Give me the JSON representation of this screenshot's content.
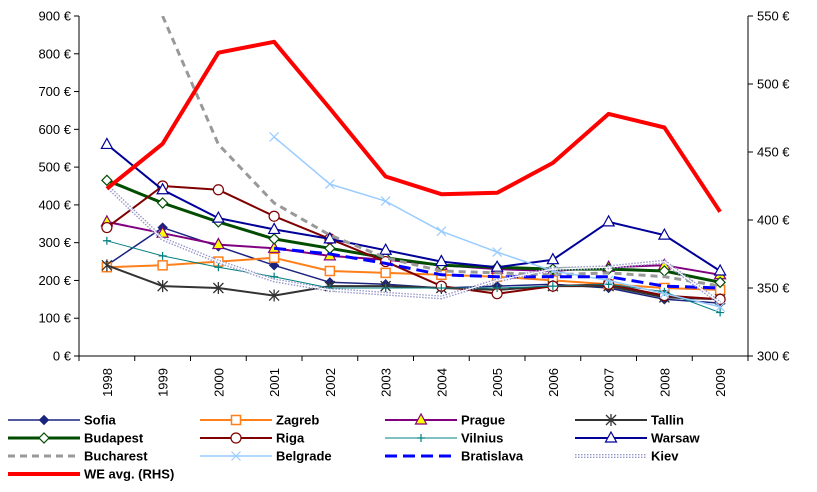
{
  "chart_data": {
    "type": "line",
    "x": [
      "1998",
      "1999",
      "2000",
      "2001",
      "2002",
      "2003",
      "2004",
      "2005",
      "2006",
      "2007",
      "2008",
      "2009"
    ],
    "y_left": {
      "lim": [
        0,
        900
      ],
      "ticks": [
        0,
        100,
        200,
        300,
        400,
        500,
        600,
        700,
        800,
        900
      ],
      "tick_labels": [
        "0 €",
        "100 €",
        "200 €",
        "300 €",
        "400 €",
        "500 €",
        "600 €",
        "700 €",
        "800 €",
        "900 €"
      ]
    },
    "y_right": {
      "lim": [
        300,
        550
      ],
      "ticks": [
        300,
        350,
        400,
        450,
        500,
        550
      ],
      "tick_labels": [
        "300 €",
        "350 €",
        "400 €",
        "450 €",
        "500 €",
        "550 €"
      ]
    },
    "grid": false,
    "legend_position": "bottom",
    "series": [
      {
        "name": "Sofia",
        "axis": "left",
        "color": "#1a237e",
        "style": "solid",
        "width": 1.5,
        "marker": "diamond-filled",
        "values": [
          240,
          340,
          290,
          240,
          195,
          190,
          180,
          185,
          190,
          180,
          150,
          140
        ]
      },
      {
        "name": "Zagreb",
        "axis": "left",
        "color": "#ff7f1a",
        "style": "solid",
        "width": 2,
        "marker": "square-open",
        "values": [
          235,
          240,
          250,
          260,
          225,
          220,
          215,
          210,
          200,
          190,
          180,
          175
        ]
      },
      {
        "name": "Prague",
        "axis": "left",
        "color": "#800080",
        "style": "solid",
        "width": 2,
        "marker": "triangle-yellow",
        "values": [
          355,
          325,
          295,
          285,
          265,
          255,
          240,
          230,
          225,
          235,
          240,
          215
        ]
      },
      {
        "name": "Tallin",
        "axis": "left",
        "color": "#333333",
        "style": "solid",
        "width": 2,
        "marker": "asterisk",
        "values": [
          240,
          185,
          180,
          160,
          185,
          185,
          180,
          175,
          185,
          185,
          155,
          150
        ]
      },
      {
        "name": "Budapest",
        "axis": "left",
        "color": "#004d00",
        "style": "solid",
        "width": 3,
        "marker": "diamond-open",
        "values": [
          465,
          405,
          355,
          310,
          285,
          260,
          240,
          235,
          230,
          230,
          225,
          195
        ]
      },
      {
        "name": "Riga",
        "axis": "left",
        "color": "#800000",
        "style": "solid",
        "width": 2,
        "marker": "circle-open",
        "values": [
          340,
          450,
          440,
          370,
          310,
          250,
          185,
          165,
          185,
          190,
          160,
          150
        ]
      },
      {
        "name": "Vilnius",
        "axis": "left",
        "color": "#008080",
        "style": "solid",
        "width": 1,
        "marker": "plus",
        "values": [
          305,
          265,
          235,
          210,
          180,
          180,
          180,
          180,
          185,
          190,
          170,
          115
        ]
      },
      {
        "name": "Warsaw",
        "axis": "left",
        "color": "#000099",
        "style": "solid",
        "width": 2,
        "marker": "triangle-open",
        "values": [
          560,
          440,
          365,
          335,
          310,
          280,
          250,
          235,
          255,
          355,
          320,
          225
        ]
      },
      {
        "name": "Bucharest",
        "axis": "left",
        "color": "#999999",
        "style": "dash",
        "width": 3,
        "marker": "none",
        "values": [
          null,
          900,
          560,
          405,
          320,
          260,
          225,
          220,
          215,
          220,
          210,
          185
        ]
      },
      {
        "name": "Belgrade",
        "axis": "left",
        "color": "#99ccff",
        "style": "solid",
        "width": 1.5,
        "marker": "x",
        "values": [
          null,
          null,
          null,
          580,
          455,
          410,
          330,
          275,
          225,
          200,
          165,
          130
        ]
      },
      {
        "name": "Bratislava",
        "axis": "left",
        "color": "#0000ff",
        "style": "dash",
        "width": 3,
        "marker": "none",
        "values": [
          null,
          null,
          null,
          285,
          270,
          245,
          215,
          210,
          210,
          210,
          185,
          180
        ]
      },
      {
        "name": "Kiev",
        "axis": "left",
        "color": "#9999cc",
        "style": "dotted-double",
        "width": 3,
        "marker": "none",
        "values": [
          450,
          310,
          250,
          200,
          175,
          165,
          155,
          200,
          230,
          235,
          250,
          140
        ]
      },
      {
        "name": "WE avg. (RHS)",
        "axis": "right",
        "color": "#ff0000",
        "style": "solid",
        "width": 4,
        "marker": "none",
        "values": [
          423,
          456,
          523,
          531,
          482,
          432,
          419,
          420,
          442,
          478,
          468,
          406
        ]
      }
    ]
  }
}
